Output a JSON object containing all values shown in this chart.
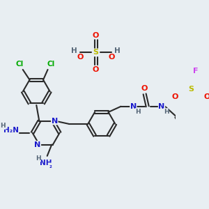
{
  "background_color": "#e8eef2",
  "figsize": [
    3.0,
    3.0
  ],
  "dpi": 100,
  "colors": {
    "bond": "#2a2a2a",
    "N": "#1a1acc",
    "O": "#ee1100",
    "Cl": "#00aa00",
    "F": "#cc44ee",
    "S": "#bbbb00",
    "H": "#556677",
    "C": "#2a2a2a"
  }
}
